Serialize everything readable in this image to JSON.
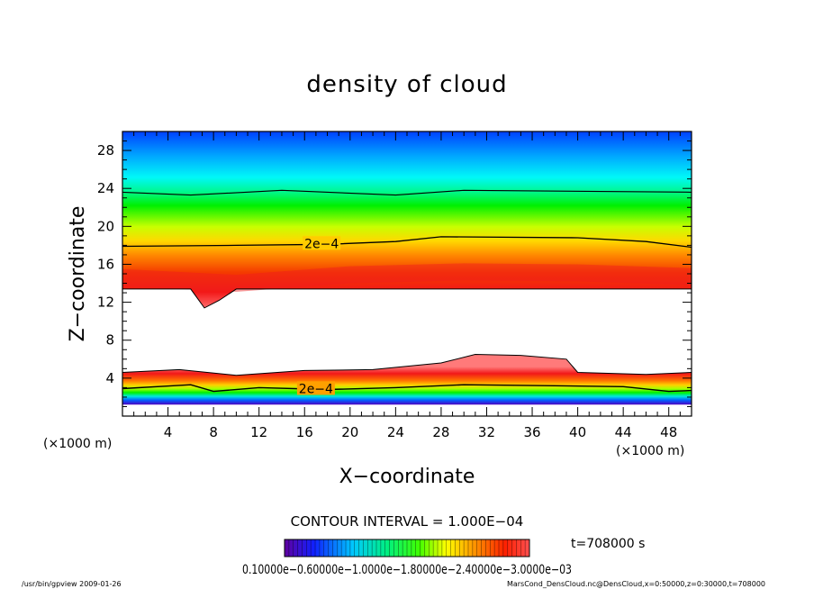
{
  "chart_data": {
    "type": "heatmap",
    "title": "density of cloud",
    "xlabel": "X−coordinate",
    "ylabel": "Z−coordinate",
    "x_unit_left": "(×1000 m)",
    "x_unit_right": "(×1000 m)",
    "xlim": [
      0,
      50
    ],
    "ylim": [
      0,
      30
    ],
    "xticks": [
      4,
      8,
      12,
      16,
      20,
      24,
      28,
      32,
      36,
      40,
      44,
      48
    ],
    "yticks": [
      4,
      8,
      12,
      16,
      20,
      24,
      28
    ],
    "contour_interval_text": "CONTOUR INTERVAL = 1.000E−04",
    "contour_labels": [
      {
        "text": "2e−4",
        "x": 17.5,
        "z": 18.2
      },
      {
        "text": "2e−4",
        "x": 17,
        "z": 2.9
      }
    ],
    "upper_layer": {
      "bottom": [
        [
          0,
          13.4
        ],
        [
          6,
          13.4
        ],
        [
          7.2,
          11.4
        ],
        [
          8.5,
          12.2
        ],
        [
          10,
          13.4
        ],
        [
          50,
          13.4
        ]
      ],
      "contour_2e4": [
        [
          0,
          17.9
        ],
        [
          10,
          18.0
        ],
        [
          18,
          18.1
        ],
        [
          24,
          18.4
        ],
        [
          28,
          18.9
        ],
        [
          40,
          18.8
        ],
        [
          46,
          18.4
        ],
        [
          50,
          17.8
        ]
      ],
      "contour_outer": [
        [
          0,
          23.6
        ],
        [
          6,
          23.3
        ],
        [
          14,
          23.8
        ],
        [
          24,
          23.3
        ],
        [
          30,
          23.8
        ],
        [
          50,
          23.6
        ]
      ],
      "core_z": [
        [
          0,
          14.6
        ],
        [
          10,
          14.0
        ],
        [
          20,
          14.9
        ],
        [
          30,
          15.2
        ],
        [
          40,
          15.1
        ],
        [
          50,
          14.7
        ]
      ]
    },
    "lower_layer": {
      "top": [
        [
          0,
          4.6
        ],
        [
          5,
          4.9
        ],
        [
          10,
          4.3
        ],
        [
          16,
          4.8
        ],
        [
          22,
          4.9
        ],
        [
          28,
          5.6
        ],
        [
          31,
          6.5
        ],
        [
          35,
          6.4
        ],
        [
          39,
          6.0
        ],
        [
          40,
          4.6
        ],
        [
          46,
          4.4
        ],
        [
          50,
          4.6
        ]
      ],
      "contour_2e4": [
        [
          0,
          2.9
        ],
        [
          6,
          3.3
        ],
        [
          8,
          2.6
        ],
        [
          12,
          3.0
        ],
        [
          18,
          2.8
        ],
        [
          24,
          3.0
        ],
        [
          30,
          3.3
        ],
        [
          38,
          3.2
        ],
        [
          44,
          3.1
        ],
        [
          48,
          2.6
        ],
        [
          50,
          2.7
        ]
      ],
      "base": 1.2
    },
    "colorbar": {
      "tick_text": "0.10000e−0.60000e−1.0000e−1.80000e−2.40000e−3.0000e−03",
      "time_text": "t=708000 s"
    }
  },
  "footer": {
    "left": "/usr/bin/gpview   2009-01-26",
    "right": "MarsCond_DensCloud.nc@DensCloud,x=0:50000,z=0:30000,t=708000"
  }
}
